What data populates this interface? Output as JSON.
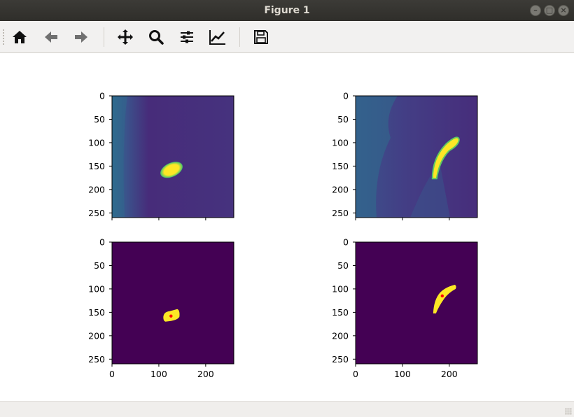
{
  "window": {
    "title": "Figure 1"
  },
  "toolbar": {
    "buttons": [
      {
        "name": "home-button",
        "icon": "home-icon"
      },
      {
        "name": "back-button",
        "icon": "arrow-left-icon"
      },
      {
        "name": "forward-button",
        "icon": "arrow-right-icon"
      },
      {
        "name": "pan-button",
        "icon": "move-icon"
      },
      {
        "name": "zoom-button",
        "icon": "magnifier-icon"
      },
      {
        "name": "subplots-button",
        "icon": "sliders-icon"
      },
      {
        "name": "axes-edit-button",
        "icon": "line-chart-icon"
      },
      {
        "name": "save-button",
        "icon": "floppy-disk-icon"
      }
    ]
  },
  "colors": {
    "viridis_dark": "#440154",
    "viridis_bright": "#fde725",
    "marker": "#ff0000",
    "toolbar_bg": "#f2f1f0",
    "titlebar_bg": "#3c3b37"
  },
  "chart_data": [
    {
      "type": "heatmap",
      "panel": "top-left",
      "description": "grayscale frame (viridis colormap)",
      "xlim": [
        0,
        260
      ],
      "ylim": [
        260,
        0
      ],
      "yticks": [
        "0",
        "50",
        "100",
        "150",
        "200",
        "250"
      ],
      "xticks": [],
      "blob_center": [
        127,
        158
      ]
    },
    {
      "type": "heatmap",
      "panel": "top-right",
      "description": "grayscale frame (viridis colormap)",
      "xlim": [
        0,
        260
      ],
      "ylim": [
        260,
        0
      ],
      "yticks": [
        "0",
        "50",
        "100",
        "150",
        "200",
        "250"
      ],
      "xticks": [],
      "blob_center": [
        185,
        120
      ]
    },
    {
      "type": "heatmap",
      "panel": "bottom-left",
      "description": "binary mask with centroid",
      "xlim": [
        0,
        260
      ],
      "ylim": [
        260,
        0
      ],
      "yticks": [
        "0",
        "50",
        "100",
        "150",
        "200",
        "250"
      ],
      "xticks": [
        "0",
        "100",
        "200"
      ],
      "centroid": [
        126,
        158
      ]
    },
    {
      "type": "heatmap",
      "panel": "bottom-right",
      "description": "binary mask with centroid",
      "xlim": [
        0,
        260
      ],
      "ylim": [
        260,
        0
      ],
      "yticks": [
        "0",
        "50",
        "100",
        "150",
        "200",
        "250"
      ],
      "xticks": [
        "0",
        "100",
        "200"
      ],
      "centroid": [
        185,
        115
      ]
    }
  ]
}
